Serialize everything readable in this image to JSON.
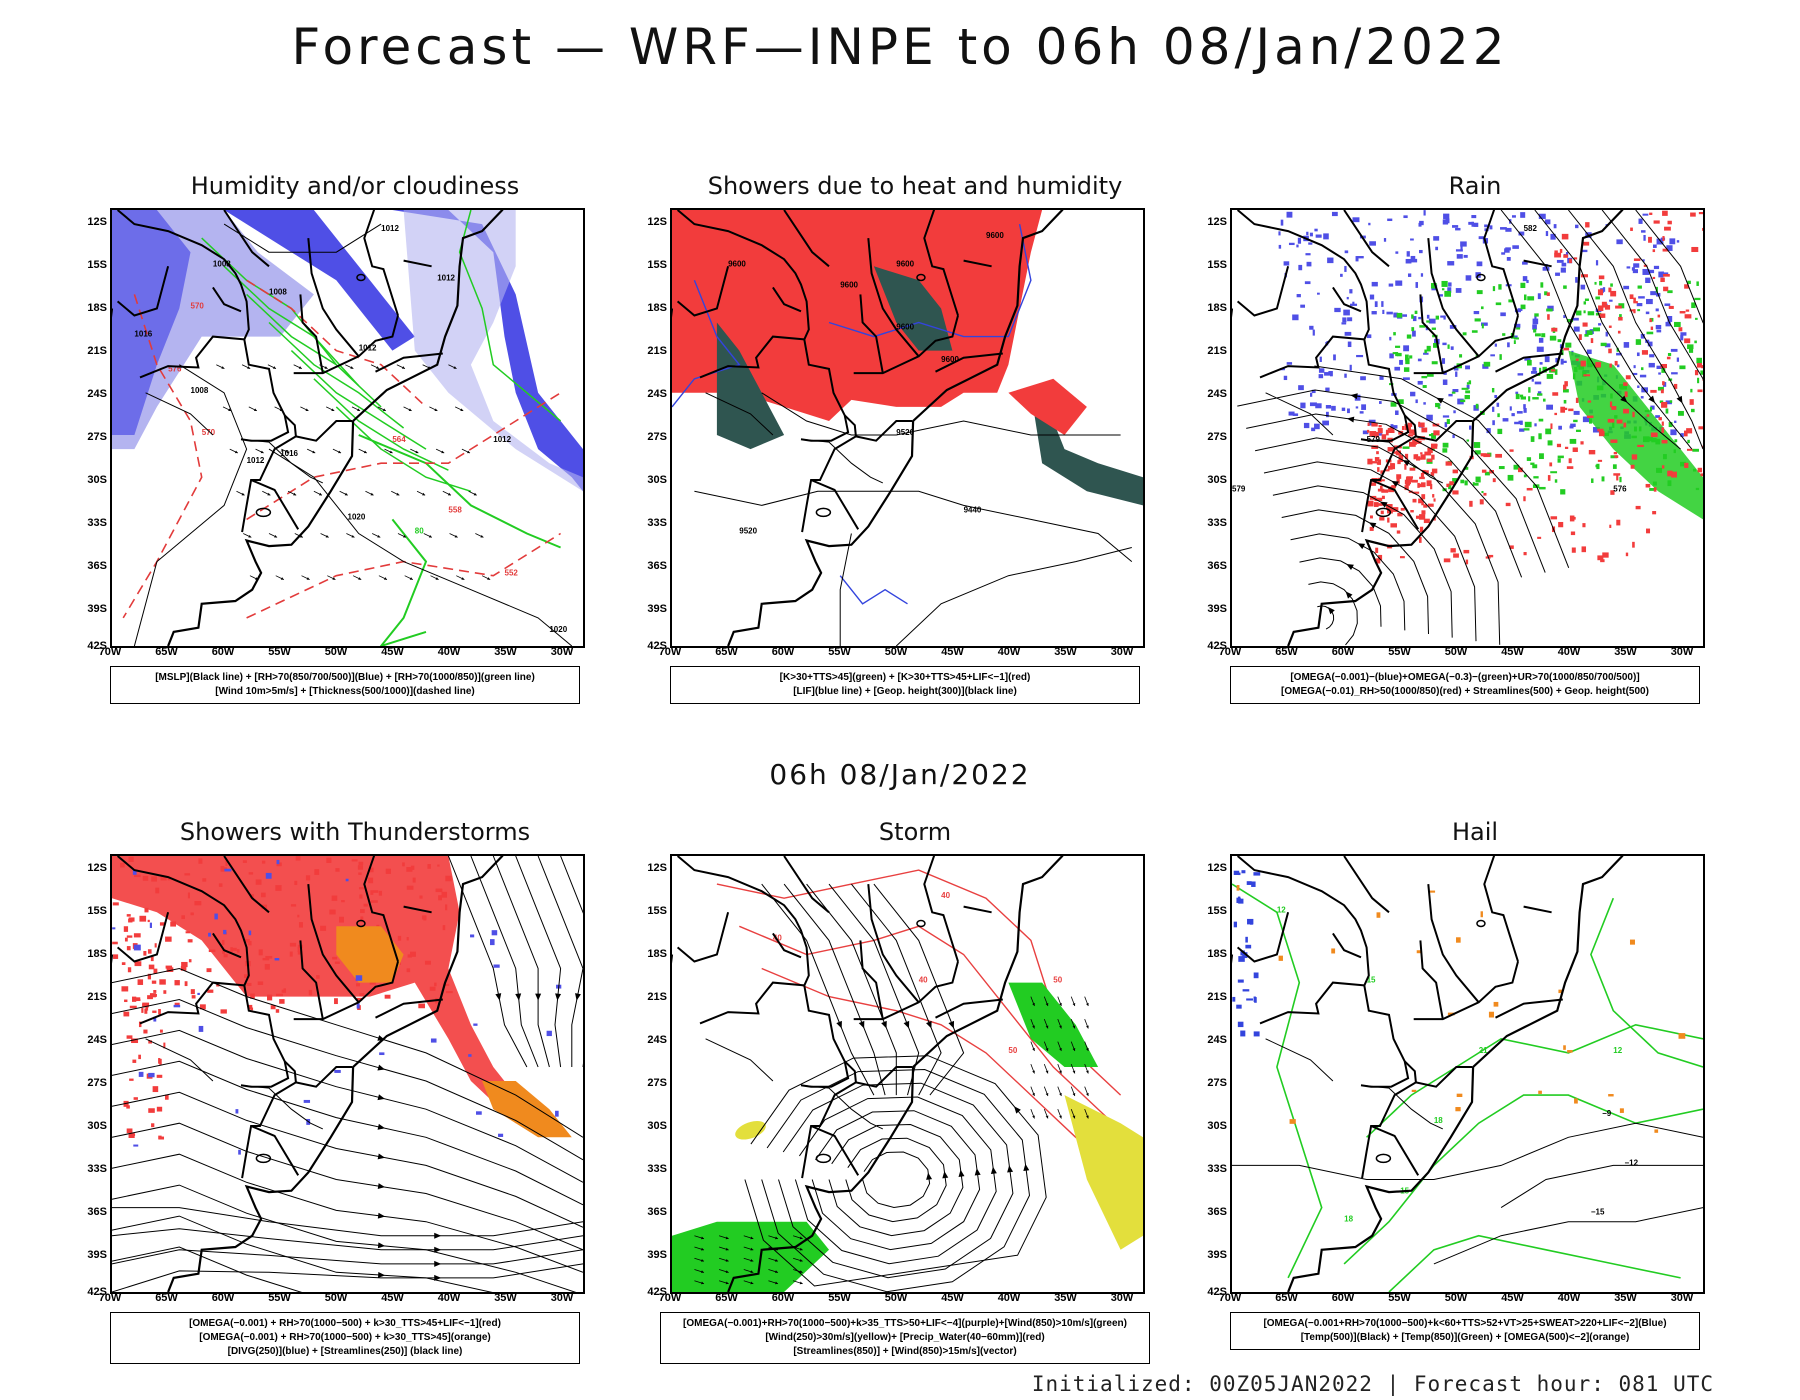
{
  "title": "Forecast — WRF—INPE to 06h 08/Jan/2022",
  "mid_title": "06h 08/Jan/2022",
  "footer": "Initialized: 00Z05JAN2022 | Forecast hour: 081 UTC",
  "lat_labels": [
    "12S",
    "15S",
    "18S",
    "21S",
    "24S",
    "27S",
    "30S",
    "33S",
    "36S",
    "39S",
    "42S"
  ],
  "lon_labels": [
    "70W",
    "65W",
    "60W",
    "55W",
    "50W",
    "45W",
    "40W",
    "35W",
    "30W"
  ],
  "colors": {
    "blue": "#4f4fe6",
    "light_blue": "#b4b4f0",
    "red": "#f23c3c",
    "green": "#22cc22",
    "dark_teal": "#2f5550",
    "orange": "#f08a1e",
    "yellow": "#e3df3c"
  },
  "panels": [
    {
      "title": "Humidity and/or cloudiness",
      "legend": [
        "[MSLP](Black line) + [RH>70(850/700/500)](Blue) + [RH>70(1000/850)](green line)",
        "[Wind 10m>5m/s] + [Thickness(500/1000)](dashed line)"
      ],
      "contour_labels": [
        "1012",
        "1008",
        "1008",
        "1012",
        "1016",
        "1012",
        "1008",
        "1012",
        "1016",
        "1020",
        "1012",
        "1020",
        "570",
        "576",
        "570",
        "564",
        "558",
        "552",
        "80"
      ]
    },
    {
      "title": "Showers due to heat and humidity",
      "legend": [
        "[K>30+TTS>45](green) + [K>30+TTS>45+LIF<−1](red)",
        "[LIF](blue line) + [Geop. height(300)](black line)"
      ],
      "contour_labels": [
        "9600",
        "9600",
        "9600",
        "9600",
        "9600",
        "9520",
        "9440",
        "9520",
        "9600"
      ]
    },
    {
      "title": "Rain",
      "legend": [
        "[OMEGA(−0.001)−(blue)+OMEGA(−0.3)−(green)+UR>70(1000/850/700/500)]",
        "[OMEGA(−0.01)_RH>50(1000/850)(red) + Streamlines(500) + Geop. height(500)"
      ],
      "contour_labels": [
        "579",
        "576",
        "579",
        "582"
      ]
    },
    {
      "title": "Showers with Thunderstorms",
      "legend": [
        "[OMEGA(−0.001) + RH>70(1000−500) + k>30_TTS>45+LIF<−1](red)",
        "[OMEGA(−0.001) + RH>70(1000−500) + k>30_TTS>45](orange)",
        "[DIVG(250)](blue) + [Streamlines(250)] (black line)"
      ],
      "contour_labels": []
    },
    {
      "title": "Storm",
      "legend": [
        "[OMEGA(−0.001)+RH>70(1000−500)+k>35_TTS>50+LIF<−4](purple)+[Wind(850)>10m/s](green)",
        "[Wind(250)>30m/s](yellow)+ [Precip_Water(40−60mm)](red)",
        "[Streamlines(850)] + [Wind(850)>15m/s](vector)"
      ],
      "contour_labels": [
        "40",
        "50",
        "40",
        "50",
        "40"
      ]
    },
    {
      "title": "Hail",
      "legend": [
        "[OMEGA(−0.001+RH>70(1000−500)+k<60+TTS>52+VT>25+SWEAT>220+LIF<−2](Blue)",
        "[Temp(500)](Black) + [Temp(850)](Green) + [OMEGA(500)<−2](orange)"
      ],
      "contour_labels": [
        "−9",
        "−12",
        "−15",
        "12",
        "15",
        "18",
        "21",
        "12",
        "15",
        "18"
      ]
    }
  ]
}
